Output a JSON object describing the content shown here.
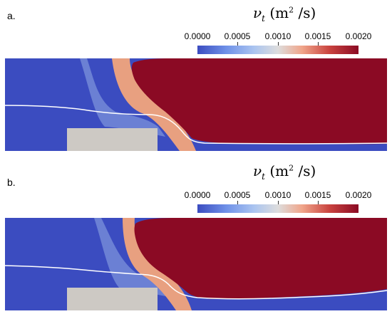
{
  "panels": [
    {
      "label": "a.",
      "colorbar": {
        "variable": "ν",
        "subscript": "t",
        "units_open": " (m",
        "units_power": "2",
        "units_close": " /s)",
        "ticks": [
          "0.0000",
          "0.0005",
          "0.0010",
          "0.0015",
          "0.0020"
        ]
      }
    },
    {
      "label": "b.",
      "colorbar": {
        "variable": "ν",
        "subscript": "t",
        "units_open": " (m",
        "units_power": "2",
        "units_close": " /s)",
        "ticks": [
          "0.0000",
          "0.0005",
          "0.0010",
          "0.0015",
          "0.0020"
        ]
      }
    }
  ],
  "colors": {
    "low": "#3b4cc0",
    "mid": "#dddddd",
    "high": "#8b0a24",
    "obstacle": "#cdc9c4",
    "contour": "#ffffff"
  }
}
